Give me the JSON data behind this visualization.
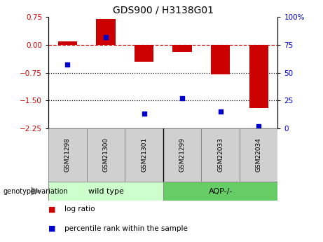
{
  "title": "GDS900 / H3138G01",
  "samples": [
    "GSM21298",
    "GSM21300",
    "GSM21301",
    "GSM21299",
    "GSM22033",
    "GSM22034"
  ],
  "log_ratio": [
    0.1,
    0.7,
    -0.45,
    -0.2,
    -0.8,
    -1.7
  ],
  "percentile_rank": [
    57,
    82,
    13,
    27,
    15,
    2
  ],
  "ylim_left": [
    -2.25,
    0.75
  ],
  "ylim_right": [
    0,
    100
  ],
  "yticks_left": [
    0.75,
    0,
    -0.75,
    -1.5,
    -2.25
  ],
  "yticks_right": [
    100,
    75,
    50,
    25,
    0
  ],
  "hlines": [
    0,
    -0.75,
    -1.5
  ],
  "bar_color": "#cc0000",
  "dot_color": "#0000cc",
  "n_wild_type": 3,
  "n_aqp": 3,
  "wild_type_color": "#ccffcc",
  "aqp_color": "#66cc66",
  "genotype_label": "genotype/variation",
  "legend_log_ratio": "log ratio",
  "legend_percentile": "percentile rank within the sample",
  "bar_width": 0.5
}
